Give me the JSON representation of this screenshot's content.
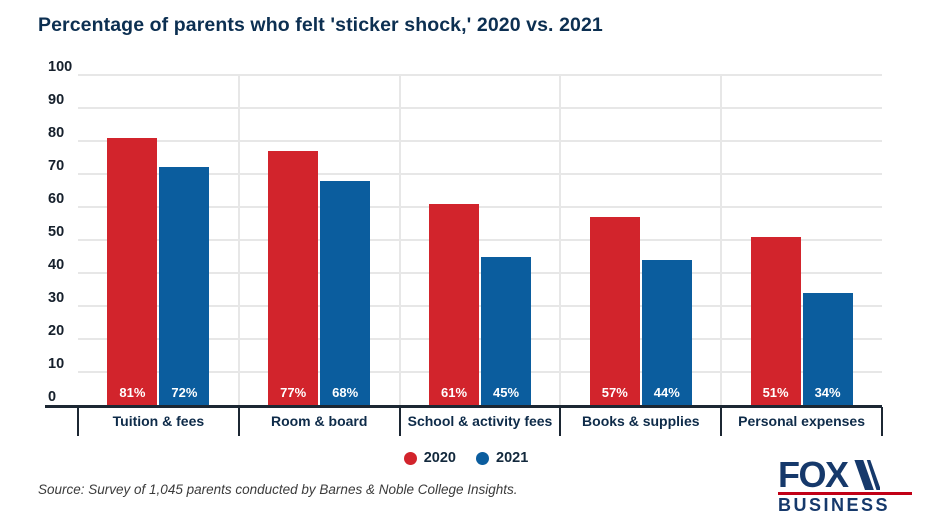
{
  "title": "Percentage of parents who felt 'sticker shock,' 2020 vs. 2021",
  "chart_data": {
    "type": "bar",
    "categories": [
      "Tuition & fees",
      "Room & board",
      "School & activity fees",
      "Books & supplies",
      "Personal expenses"
    ],
    "series": [
      {
        "name": "2020",
        "color": "#d2242c",
        "values": [
          81,
          77,
          61,
          57,
          51
        ]
      },
      {
        "name": "2021",
        "color": "#0b5d9e",
        "values": [
          72,
          68,
          45,
          44,
          34
        ]
      }
    ],
    "value_label_format": "{v}%",
    "xlabel": "",
    "ylabel": "",
    "ylim": [
      0,
      100
    ],
    "yticks": [
      0,
      10,
      20,
      30,
      40,
      50,
      60,
      70,
      80,
      90,
      100
    ],
    "grid": true,
    "legend_position": "bottom-center"
  },
  "legend": {
    "items": [
      {
        "label": "2020",
        "color": "#d2242c"
      },
      {
        "label": "2021",
        "color": "#0b5d9e"
      }
    ]
  },
  "source_note": "Source: Survey of 1,045 parents conducted by Barnes & Noble College Insights.",
  "logo": {
    "line1": "FOX",
    "line2": "BUSINESS"
  },
  "colors": {
    "title_text": "#0c2f51",
    "axis_text": "#16202c",
    "category_text": "#0e2b49",
    "gridline": "#e7e7e7",
    "group_separator": "#e7e7e7",
    "axis_line": "#1c2733",
    "bar_label_text": "#ffffff",
    "legend_text": "#12283c",
    "source_text": "#3b3b3b",
    "logo_navy": "#16396b",
    "logo_red": "#c10016",
    "background": "#ffffff"
  }
}
